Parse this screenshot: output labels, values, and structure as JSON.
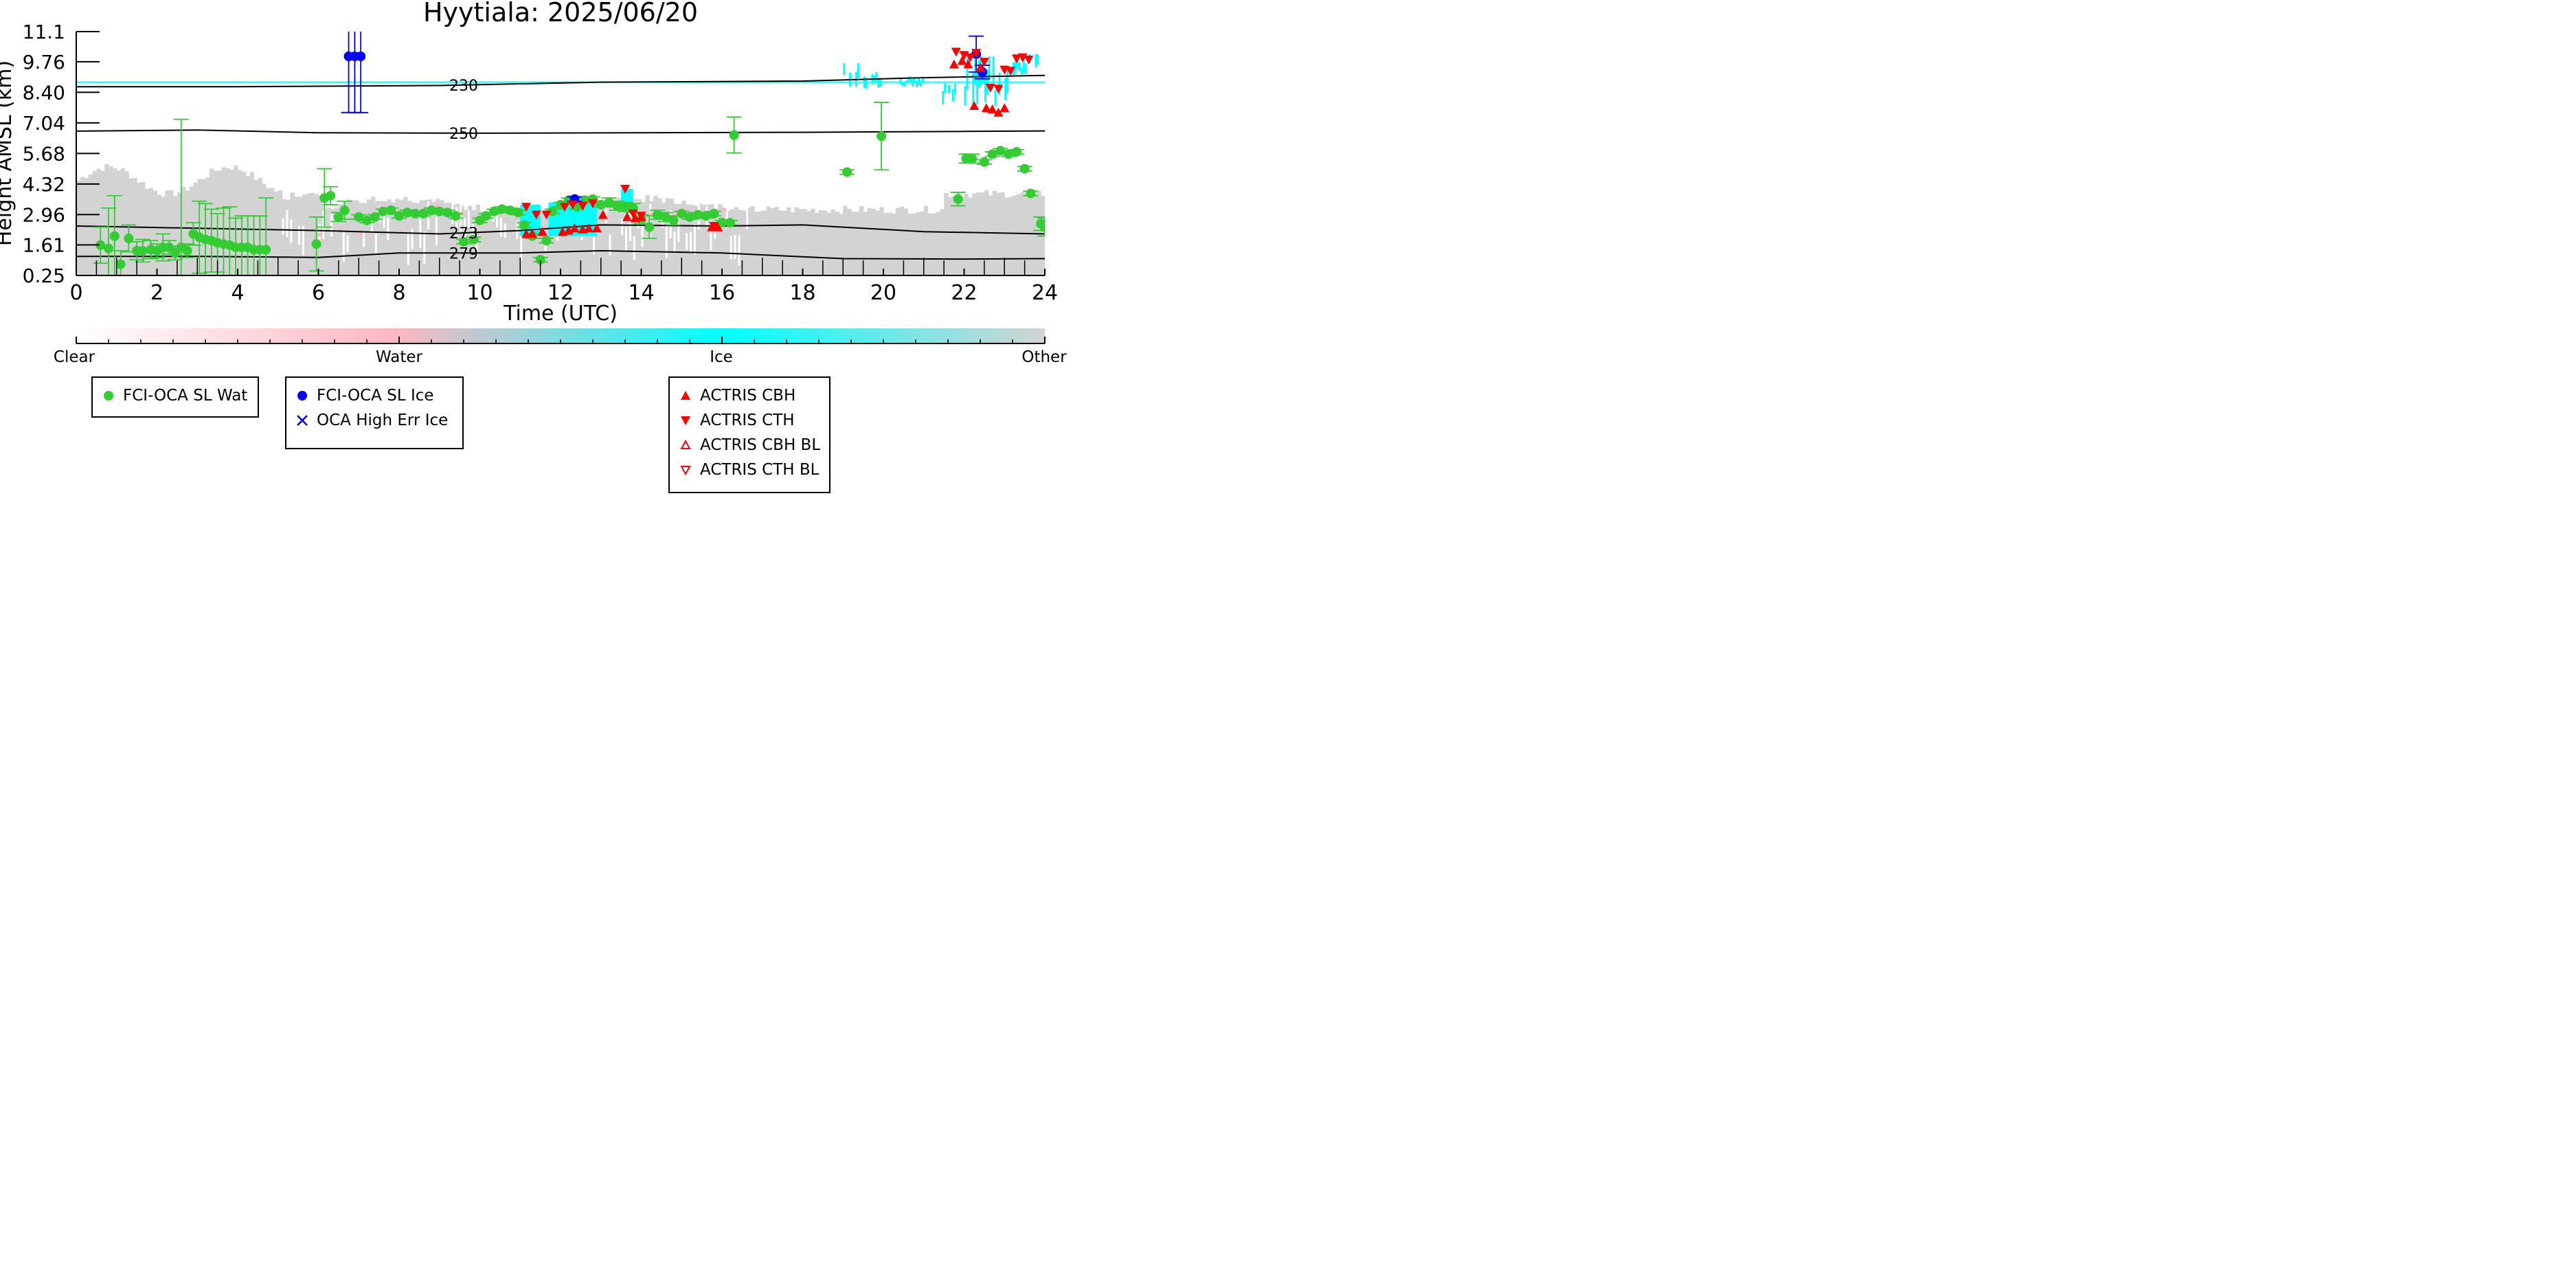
{
  "chart_data": {
    "type": "scatter",
    "title": "Hyytiala: 2025/06/20",
    "xlabel": "Time (UTC)",
    "ylabel": "Height AMSL (km)",
    "xlim": [
      0,
      24
    ],
    "ylim": [
      0.25,
      11.1
    ],
    "x_ticks": [
      "0",
      "2",
      "4",
      "6",
      "8",
      "10",
      "12",
      "14",
      "16",
      "18",
      "20",
      "22",
      "24"
    ],
    "y_ticks": [
      "0.25",
      "1.61",
      "2.96",
      "4.32",
      "5.68",
      "7.04",
      "8.40",
      "9.76",
      "11.1"
    ],
    "y_tick_values": [
      0.25,
      1.61,
      2.96,
      4.32,
      5.68,
      7.04,
      8.4,
      9.76,
      11.1
    ],
    "background_classes": {
      "colorbar_labels": [
        "Clear",
        "Water",
        "Ice",
        "Other"
      ],
      "colors": {
        "clear": "#ffffff",
        "water": "#ffb6c1",
        "ice": "#00ffff",
        "other": "#d3d3d3"
      }
    },
    "isotherms": [
      {
        "label": "230",
        "points": [
          [
            0,
            8.65
          ],
          [
            4,
            8.65
          ],
          [
            9,
            8.7
          ],
          [
            13,
            8.85
          ],
          [
            18,
            8.9
          ],
          [
            21,
            9.05
          ],
          [
            24,
            9.15
          ]
        ]
      },
      {
        "label": "250",
        "points": [
          [
            0,
            6.67
          ],
          [
            3,
            6.72
          ],
          [
            6,
            6.6
          ],
          [
            10,
            6.58
          ],
          [
            14,
            6.6
          ],
          [
            18,
            6.62
          ],
          [
            22,
            6.66
          ],
          [
            24,
            6.68
          ]
        ]
      },
      {
        "label": "273",
        "points": [
          [
            0,
            2.45
          ],
          [
            3,
            2.35
          ],
          [
            6,
            2.25
          ],
          [
            9,
            2.1
          ],
          [
            11,
            2.25
          ],
          [
            13,
            2.5
          ],
          [
            16,
            2.45
          ],
          [
            18,
            2.5
          ],
          [
            21,
            2.2
          ],
          [
            24,
            2.1
          ]
        ]
      },
      {
        "label": "279",
        "points": [
          [
            0,
            1.1
          ],
          [
            3,
            1.1
          ],
          [
            6,
            1.05
          ],
          [
            8,
            1.25
          ],
          [
            11,
            1.25
          ],
          [
            13,
            1.35
          ],
          [
            16,
            1.25
          ],
          [
            19,
            1.0
          ],
          [
            22,
            0.98
          ],
          [
            24,
            1.0
          ]
        ]
      }
    ],
    "cirrus_line_km": 8.85,
    "series": [
      {
        "name": "FCI-OCA SL Wat",
        "color": "#33cc33",
        "marker": "circle",
        "points": [
          [
            0.6,
            1.6,
            0.8
          ],
          [
            0.8,
            1.45,
            1.8
          ],
          [
            0.95,
            2.0,
            1.8
          ],
          [
            1.1,
            0.75,
            0.6
          ],
          [
            1.3,
            1.9,
            0.6
          ],
          [
            1.5,
            1.35,
            0.4
          ],
          [
            1.65,
            1.35,
            0.5
          ],
          [
            1.85,
            1.4,
            0.4
          ],
          [
            2.0,
            1.35,
            0.3
          ],
          [
            2.15,
            1.5,
            0.6
          ],
          [
            2.3,
            1.5,
            0.3
          ],
          [
            2.45,
            1.25,
            0.3
          ],
          [
            2.6,
            1.5,
            5.7
          ],
          [
            2.75,
            1.35,
            0.3
          ],
          [
            2.9,
            2.1,
            0.5
          ],
          [
            3.05,
            1.95,
            1.6
          ],
          [
            3.2,
            1.85,
            1.6
          ],
          [
            3.35,
            1.8,
            1.4
          ],
          [
            3.5,
            1.7,
            1.3
          ],
          [
            3.65,
            1.65,
            1.6
          ],
          [
            3.8,
            1.6,
            1.7
          ],
          [
            3.95,
            1.5,
            1.3
          ],
          [
            4.1,
            1.5,
            1.4
          ],
          [
            4.25,
            1.5,
            1.4
          ],
          [
            4.4,
            1.4,
            1.5
          ],
          [
            4.55,
            1.4,
            1.5
          ],
          [
            4.7,
            1.4,
            2.3
          ],
          [
            5.95,
            1.65,
            1.2
          ],
          [
            6.15,
            3.7,
            1.3
          ],
          [
            6.3,
            3.8,
            0.4
          ],
          [
            6.5,
            2.85,
            0.2
          ],
          [
            6.65,
            3.15,
            0.4
          ],
          [
            7.0,
            2.85,
            0.1
          ],
          [
            7.2,
            2.7,
            0.1
          ],
          [
            7.4,
            2.85,
            0.1
          ],
          [
            7.6,
            3.1,
            0.1
          ],
          [
            7.8,
            3.15,
            0.1
          ],
          [
            8.0,
            2.9,
            0.1
          ],
          [
            8.2,
            3.05,
            0.1
          ],
          [
            8.4,
            3.0,
            0.1
          ],
          [
            8.6,
            3.0,
            0.1
          ],
          [
            8.8,
            3.15,
            0.1
          ],
          [
            9.0,
            3.1,
            0.1
          ],
          [
            9.2,
            3.05,
            0.1
          ],
          [
            9.4,
            2.9,
            0.1
          ],
          [
            9.6,
            1.75,
            0.1
          ],
          [
            9.85,
            1.85,
            0.1
          ],
          [
            10.0,
            2.7,
            0.1
          ],
          [
            10.15,
            2.9,
            0.1
          ],
          [
            10.35,
            3.1,
            0.1
          ],
          [
            10.55,
            3.2,
            0.1
          ],
          [
            10.75,
            3.15,
            0.1
          ],
          [
            10.95,
            3.05,
            0.1
          ],
          [
            11.1,
            2.5,
            0.1
          ],
          [
            11.3,
            2.0,
            0.1
          ],
          [
            11.5,
            0.95,
            0.1
          ],
          [
            11.65,
            1.8,
            0.1
          ],
          [
            11.8,
            3.1,
            0.1
          ],
          [
            12.0,
            3.4,
            0.1
          ],
          [
            12.2,
            3.6,
            0.1
          ],
          [
            12.4,
            3.3,
            0.1
          ],
          [
            12.6,
            3.6,
            0.1
          ],
          [
            12.8,
            3.65,
            0.1
          ],
          [
            13.0,
            3.4,
            0.1
          ],
          [
            13.2,
            3.5,
            0.2
          ],
          [
            13.4,
            3.35,
            0.2
          ],
          [
            13.6,
            3.3,
            0.2
          ],
          [
            13.8,
            3.25,
            0.2
          ],
          [
            14.0,
            2.75,
            0.2
          ],
          [
            14.2,
            2.4,
            0.5
          ],
          [
            14.4,
            2.95,
            0.2
          ],
          [
            14.6,
            2.85,
            0.2
          ],
          [
            14.8,
            2.7,
            0.2
          ],
          [
            15.0,
            3.0,
            0.1
          ],
          [
            15.2,
            2.85,
            0.1
          ],
          [
            15.4,
            2.95,
            0.1
          ],
          [
            15.6,
            2.9,
            0.1
          ],
          [
            15.8,
            3.0,
            0.1
          ],
          [
            16.0,
            2.6,
            0.1
          ],
          [
            16.2,
            2.6,
            0.1
          ],
          [
            16.3,
            6.5,
            0.8
          ],
          [
            19.1,
            4.85,
            0.1
          ],
          [
            19.95,
            6.45,
            1.5
          ],
          [
            21.85,
            3.65,
            0.3
          ],
          [
            22.05,
            5.45,
            0.2
          ],
          [
            22.2,
            5.45,
            0.2
          ],
          [
            22.5,
            5.3,
            0.1
          ],
          [
            22.7,
            5.65,
            0.1
          ],
          [
            22.9,
            5.8,
            0.1
          ],
          [
            23.1,
            5.65,
            0.1
          ],
          [
            23.3,
            5.75,
            0.1
          ],
          [
            23.5,
            5.0,
            0.1
          ],
          [
            23.65,
            3.9,
            0.1
          ],
          [
            23.9,
            2.55,
            0.3
          ],
          [
            24.0,
            2.4,
            0.4
          ]
        ]
      },
      {
        "name": "FCI-OCA SL Ice",
        "color": "#0000ff",
        "marker": "circle",
        "points": [
          [
            6.75,
            10.0,
            2.5
          ],
          [
            6.9,
            10.0,
            2.5
          ],
          [
            7.05,
            10.0,
            2.5
          ],
          [
            12.35,
            3.65,
            0.1
          ],
          [
            22.3,
            10.1,
            0.8
          ],
          [
            22.45,
            9.3,
            0.3
          ]
        ]
      },
      {
        "name": "OCA High Err Ice",
        "color": "#0000ff",
        "marker": "x",
        "points": []
      },
      {
        "name": "ACTRIS CBH",
        "color": "#ff0000",
        "marker": "triangle-up",
        "points": [
          [
            11.15,
            2.1
          ],
          [
            11.3,
            2.1
          ],
          [
            11.55,
            2.2
          ],
          [
            12.05,
            2.2
          ],
          [
            12.2,
            2.25
          ],
          [
            12.35,
            2.35
          ],
          [
            12.55,
            2.3
          ],
          [
            12.7,
            2.35
          ],
          [
            12.9,
            2.35
          ],
          [
            13.05,
            2.95
          ],
          [
            13.65,
            2.85
          ],
          [
            13.85,
            2.8
          ],
          [
            14.0,
            2.85
          ],
          [
            15.75,
            2.4
          ],
          [
            15.9,
            2.4
          ],
          [
            21.75,
            9.65
          ],
          [
            21.95,
            9.8
          ],
          [
            22.1,
            9.65
          ],
          [
            22.25,
            7.8
          ],
          [
            22.4,
            9.5
          ],
          [
            22.55,
            7.7
          ],
          [
            22.7,
            7.65
          ],
          [
            22.85,
            7.5
          ],
          [
            23.0,
            7.7
          ]
        ]
      },
      {
        "name": "ACTRIS CTH",
        "color": "#ff0000",
        "marker": "triangle-down",
        "points": [
          [
            11.15,
            3.3
          ],
          [
            11.4,
            2.95
          ],
          [
            11.65,
            2.95
          ],
          [
            12.1,
            3.3
          ],
          [
            12.3,
            3.4
          ],
          [
            12.55,
            3.35
          ],
          [
            12.8,
            3.45
          ],
          [
            13.6,
            4.1
          ],
          [
            13.8,
            3.0
          ],
          [
            14.0,
            2.9
          ],
          [
            15.8,
            2.45
          ],
          [
            21.8,
            10.2
          ],
          [
            22.0,
            10.05
          ],
          [
            22.15,
            9.95
          ],
          [
            22.3,
            10.15
          ],
          [
            22.5,
            9.75
          ],
          [
            22.65,
            8.6
          ],
          [
            22.85,
            8.55
          ],
          [
            23.0,
            9.4
          ],
          [
            23.15,
            9.35
          ],
          [
            23.3,
            9.9
          ],
          [
            23.45,
            9.95
          ],
          [
            23.6,
            9.85
          ]
        ]
      },
      {
        "name": "ACTRIS CBH BL",
        "color": "#ff0000",
        "marker": "triangle-up-open",
        "points": []
      },
      {
        "name": "ACTRIS CTH BL",
        "color": "#ff0000",
        "marker": "triangle-down-open",
        "points": []
      }
    ],
    "legend_groups": [
      [
        "FCI-OCA SL Wat"
      ],
      [
        "FCI-OCA SL Ice",
        "OCA High Err Ice"
      ],
      [
        "ACTRIS CBH",
        "ACTRIS CTH",
        "ACTRIS CBH BL",
        "ACTRIS CTH BL"
      ]
    ]
  }
}
